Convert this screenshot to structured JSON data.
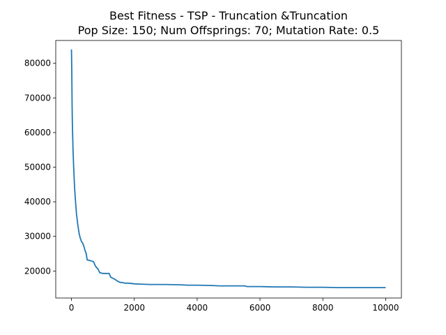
{
  "chart_data": {
    "type": "line",
    "title": "Best Fitness - TSP - Truncation &Truncation",
    "subtitle": "Pop Size: 150; Num Offsprings: 70; Mutation Rate: 0.5",
    "xlabel": "",
    "ylabel": "",
    "xlim": [
      -500,
      10500
    ],
    "ylim": [
      12200,
      86600
    ],
    "x_ticks": [
      0,
      2000,
      4000,
      6000,
      8000,
      10000
    ],
    "y_ticks": [
      20000,
      30000,
      40000,
      50000,
      60000,
      70000,
      80000
    ],
    "grid": false,
    "legend": "none",
    "line_color": "#1f77b4",
    "series": [
      {
        "x": [
          0,
          10,
          20,
          30,
          50,
          70,
          100,
          130,
          160,
          200,
          240,
          280,
          320,
          360,
          400,
          430,
          470,
          500,
          600,
          700,
          760,
          800,
          850,
          900,
          1000,
          1100,
          1200,
          1250,
          1300,
          1400,
          1500,
          1550,
          1600,
          1700,
          1800,
          1900,
          2000,
          2200,
          2500,
          3000,
          3500,
          3700,
          4000,
          4500,
          4700,
          5000,
          5500,
          5600,
          6000,
          6500,
          7000,
          7500,
          8000,
          8500,
          9000,
          9500,
          10000
        ],
        "values": [
          84000,
          78000,
          68000,
          62000,
          55000,
          50000,
          44000,
          40000,
          36500,
          33500,
          31000,
          29500,
          28500,
          28000,
          27000,
          26000,
          25000,
          23200,
          23000,
          22700,
          21500,
          21000,
          20500,
          19500,
          19300,
          19300,
          19300,
          18200,
          18000,
          17500,
          16900,
          16700,
          16700,
          16500,
          16500,
          16400,
          16300,
          16200,
          16100,
          16100,
          16000,
          15900,
          15900,
          15800,
          15700,
          15700,
          15700,
          15500,
          15500,
          15400,
          15400,
          15300,
          15300,
          15200,
          15200,
          15200,
          15200
        ]
      }
    ]
  }
}
